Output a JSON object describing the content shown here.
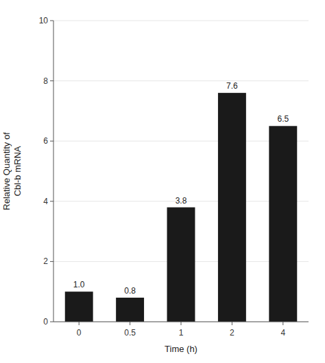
{
  "chart_data": {
    "type": "bar",
    "x_label": "Time (h)",
    "y_label": "Relative Quantity of\nCbl-b mRNA",
    "categories": [
      "0",
      "0.5",
      "1",
      "2",
      "4"
    ],
    "values": [
      1.0,
      0.8,
      3.8,
      7.6,
      6.5
    ],
    "value_labels": [
      "1.0",
      "0.8",
      "3.8",
      "7.6",
      "6.5"
    ],
    "data_labels": true,
    "color": "#1a1a1a",
    "ylim": [
      0,
      10
    ],
    "yticks": [
      0,
      2,
      4,
      6,
      8,
      10
    ]
  }
}
